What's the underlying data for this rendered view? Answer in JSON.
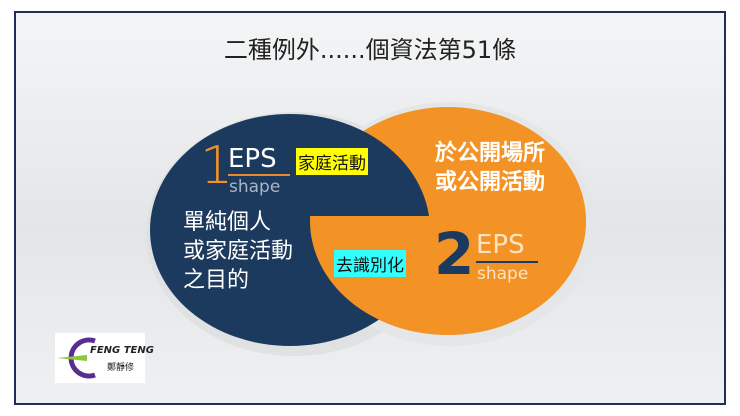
{
  "title": "二種例外......個資法第51條",
  "left": {
    "number": "1",
    "eps": "EPS",
    "shape": "shape",
    "label": "家庭活動",
    "text": [
      "單純個人",
      "或家庭活動",
      "之目的"
    ],
    "color": "#1c3a5e",
    "label_bg": "#ffff00"
  },
  "right": {
    "number": "2",
    "eps": "EPS",
    "shape": "shape",
    "label": "去識別化",
    "text": [
      "於公開場所",
      "或公開活動"
    ],
    "color": "#f39325",
    "label_bg": "#33ffff"
  },
  "logo": {
    "name": "FENG TENG",
    "sub": "鄭靜修"
  }
}
